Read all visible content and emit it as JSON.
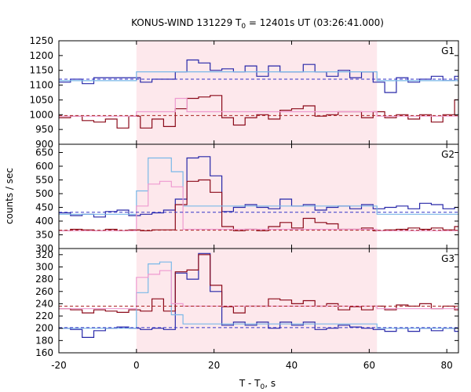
{
  "chart_data": {
    "type": "line",
    "title": {
      "pre": "KONUS-WIND 131229 T",
      "sub": "0",
      "post": " = 12401s UT (03:26:41.000)"
    },
    "xlabel": {
      "pre": "T - T",
      "sub": "0",
      "post": ", s"
    },
    "ylabel": "counts / sec",
    "xlim": [
      -20,
      83
    ],
    "x_ticks": [
      -20,
      0,
      20,
      40,
      60,
      80
    ],
    "highlight_interval": [
      0,
      62
    ],
    "colors": {
      "blue_histogram": "#2727a8",
      "red_histogram": "#8b0a1a",
      "light_blue_model": "#7ab8e8",
      "pink_model": "#ee9ad0",
      "blue_dashed": "#3535c8",
      "red_dashed": "#aa2222",
      "highlight": "#fde8ec"
    },
    "bin_width_s": 3.0,
    "x_start": -20.0,
    "panels": [
      {
        "label": "G1",
        "ylim": [
          900,
          1250
        ],
        "y_ticks": [
          900,
          950,
          1000,
          1050,
          1100,
          1150,
          1200,
          1250
        ],
        "series": [
          {
            "style": "blue_histogram",
            "values": [
              1110,
              1120,
              1105,
              1125,
              1125,
              1125,
              1125,
              1110,
              1120,
              1120,
              1145,
              1185,
              1175,
              1150,
              1155,
              1145,
              1165,
              1130,
              1165,
              1145,
              1145,
              1170,
              1145,
              1130,
              1150,
              1125,
              1145,
              1110,
              1075,
              1125,
              1110,
              1120,
              1130,
              1115,
              1130,
              1110,
              1115,
              1120,
              1115,
              1120,
              1115,
              1125,
              1110,
              1125
            ]
          },
          {
            "style": "red_histogram",
            "values": [
              990,
              995,
              980,
              975,
              985,
              955,
              995,
              955,
              985,
              960,
              1020,
              1055,
              1060,
              1065,
              990,
              965,
              990,
              1000,
              985,
              1015,
              1020,
              1030,
              995,
              1000,
              1010,
              1010,
              990,
              1010,
              990,
              1000,
              985,
              1000,
              975,
              1000,
              1050,
              1030,
              985,
              960,
              985,
              1015,
              975,
              1005,
              970,
              995
            ]
          },
          {
            "style": "light_blue_model",
            "x": [
              -20,
              0,
              0,
              62,
              62,
              83
            ],
            "y": [
              1115,
              1115,
              1145,
              1145,
              1115,
              1115
            ]
          },
          {
            "style": "pink_model",
            "x": [
              -20,
              0,
              0,
              10,
              10,
              13,
              13,
              62,
              62,
              83
            ],
            "y": [
              995,
              995,
              1010,
              1010,
              1055,
              1055,
              1010,
              1010,
              995,
              995
            ]
          },
          {
            "style": "blue_dashed",
            "x": [
              -20,
              83
            ],
            "y": [
              1120,
              1120
            ]
          },
          {
            "style": "red_dashed",
            "x": [
              -20,
              83
            ],
            "y": [
              997,
              997
            ]
          }
        ]
      },
      {
        "label": "G2",
        "ylim": [
          300,
          680
        ],
        "y_ticks": [
          300,
          350,
          400,
          450,
          500,
          550,
          600,
          650
        ],
        "series": [
          {
            "style": "blue_histogram",
            "values": [
              430,
              420,
              425,
              415,
              435,
              440,
              420,
              425,
              430,
              440,
              480,
              630,
              635,
              565,
              435,
              450,
              460,
              450,
              445,
              480,
              455,
              460,
              440,
              450,
              455,
              445,
              460,
              445,
              450,
              455,
              445,
              465,
              460,
              445,
              450,
              450,
              445,
              430,
              440,
              435,
              440,
              430,
              425,
              440
            ]
          },
          {
            "style": "red_histogram",
            "values": [
              365,
              370,
              368,
              365,
              370,
              365,
              368,
              365,
              368,
              368,
              460,
              545,
              550,
              505,
              380,
              365,
              370,
              365,
              380,
              395,
              375,
              410,
              395,
              390,
              370,
              370,
              375,
              365,
              368,
              370,
              375,
              370,
              375,
              368,
              380,
              370,
              368,
              365,
              370,
              368,
              360,
              368,
              365,
              370
            ]
          },
          {
            "style": "light_blue_model",
            "x": [
              -20,
              0,
              0,
              3,
              3,
              6,
              6,
              9,
              9,
              12,
              12,
              62,
              62,
              83
            ],
            "y": [
              425,
              425,
              510,
              510,
              630,
              630,
              630,
              630,
              580,
              580,
              455,
              455,
              425,
              425
            ]
          },
          {
            "style": "pink_model",
            "x": [
              -20,
              0,
              0,
              3,
              3,
              6,
              6,
              9,
              9,
              12,
              12,
              62,
              62,
              83
            ],
            "y": [
              365,
              365,
              455,
              455,
              535,
              535,
              545,
              545,
              525,
              525,
              370,
              370,
              365,
              365
            ]
          },
          {
            "style": "blue_dashed",
            "x": [
              -20,
              83
            ],
            "y": [
              432,
              432
            ]
          },
          {
            "style": "red_dashed",
            "x": [
              -20,
              83
            ],
            "y": [
              367,
              367
            ]
          }
        ]
      },
      {
        "label": "G3",
        "ylim": [
          160,
          330
        ],
        "y_ticks": [
          160,
          180,
          200,
          220,
          240,
          260,
          280,
          300,
          320
        ],
        "series": [
          {
            "style": "blue_histogram",
            "values": [
              200,
              198,
              185,
              196,
              200,
              202,
              200,
              198,
              200,
              198,
              290,
              280,
              322,
              260,
              205,
              210,
              205,
              210,
              200,
              210,
              205,
              210,
              198,
              200,
              205,
              202,
              200,
              198,
              195,
              200,
              195,
              200,
              196,
              200,
              195,
              200,
              198,
              195,
              200,
              198,
              195,
              200,
              192,
              200
            ]
          },
          {
            "style": "red_histogram",
            "values": [
              232,
              230,
              225,
              230,
              228,
              226,
              230,
              228,
              248,
              228,
              292,
              295,
              320,
              270,
              235,
              225,
              236,
              236,
              248,
              246,
              240,
              245,
              236,
              240,
              230,
              235,
              230,
              236,
              230,
              238,
              236,
              240,
              232,
              236,
              230,
              232,
              250,
              228,
              230,
              236,
              230,
              236,
              228,
              234
            ]
          },
          {
            "style": "light_blue_model",
            "x": [
              -20,
              0,
              0,
              3,
              3,
              6,
              6,
              9,
              9,
              12,
              12,
              62,
              62,
              83
            ],
            "y": [
              200,
              200,
              258,
              258,
              305,
              305,
              308,
              308,
              222,
              222,
              207,
              207,
              200,
              200
            ]
          },
          {
            "style": "pink_model",
            "x": [
              -20,
              0,
              0,
              3,
              3,
              6,
              6,
              9,
              9,
              12,
              12,
              62,
              62,
              83
            ],
            "y": [
              232,
              232,
              283,
              283,
              288,
              288,
              294,
              294,
              240,
              240,
              236,
              236,
              232,
              232
            ]
          },
          {
            "style": "blue_dashed",
            "x": [
              -20,
              83
            ],
            "y": [
              201,
              201
            ]
          },
          {
            "style": "red_dashed",
            "x": [
              -20,
              83
            ],
            "y": [
              236,
              236
            ]
          }
        ]
      }
    ]
  }
}
